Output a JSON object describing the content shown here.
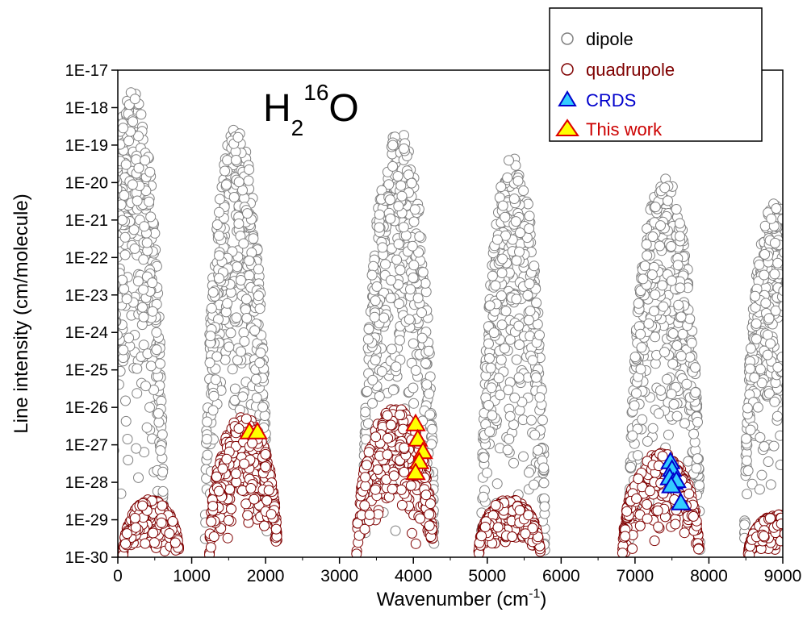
{
  "chart_data": {
    "type": "scatter",
    "title": "",
    "annotation": {
      "base": "H",
      "subscript": "2",
      "superscript": "16",
      "tail": "O"
    },
    "xlabel": {
      "main": "Wavenumber (cm",
      "superscript": "-1",
      "close": ")"
    },
    "ylabel": "Line intensity (cm/molecule)",
    "xlim": [
      0,
      9000
    ],
    "ylim": [
      1e-30,
      1e-17
    ],
    "yscale": "log",
    "grid": false,
    "legend_position": "top-right",
    "x_ticks": [
      "0",
      "1000",
      "2000",
      "3000",
      "4000",
      "5000",
      "6000",
      "7000",
      "8000",
      "9000"
    ],
    "x_tick_values": [
      0,
      1000,
      2000,
      3000,
      4000,
      5000,
      6000,
      7000,
      8000,
      9000
    ],
    "y_ticks": [
      "1E-30",
      "1E-29",
      "1E-28",
      "1E-27",
      "1E-26",
      "1E-25",
      "1E-24",
      "1E-23",
      "1E-22",
      "1E-21",
      "1E-20",
      "1E-19",
      "1E-18",
      "1E-17"
    ],
    "y_tick_exponents": [
      -30,
      -29,
      -28,
      -27,
      -26,
      -25,
      -24,
      -23,
      -22,
      -21,
      -20,
      -19,
      -18,
      -17
    ],
    "series": [
      {
        "name": "dipole",
        "marker": "circle",
        "color": "#808080",
        "fill": "#ffffff",
        "bands": [
          {
            "center": 200,
            "width": 420,
            "peak_log": -17.45,
            "floor_log": -30
          },
          {
            "center": 1600,
            "width": 420,
            "peak_log": -18.55,
            "floor_log": -30
          },
          {
            "center": 3800,
            "width": 480,
            "peak_log": -18.6,
            "floor_log": -30
          },
          {
            "center": 5350,
            "width": 430,
            "peak_log": -19.3,
            "floor_log": -30
          },
          {
            "center": 7400,
            "width": 480,
            "peak_log": -19.85,
            "floor_log": -30
          },
          {
            "center": 8900,
            "width": 420,
            "peak_log": -20.5,
            "floor_log": -30
          }
        ]
      },
      {
        "name": "quadrupole",
        "marker": "circle",
        "color": "#7f0000",
        "fill": "#ffffff",
        "bands": [
          {
            "center": 450,
            "width": 380,
            "peak_log": -28.45,
            "floor_log": -30
          },
          {
            "center": 1700,
            "width": 460,
            "peak_log": -26.25,
            "floor_log": -30
          },
          {
            "center": 3750,
            "width": 520,
            "peak_log": -26.0,
            "floor_log": -30
          },
          {
            "center": 5300,
            "width": 420,
            "peak_log": -28.45,
            "floor_log": -30
          },
          {
            "center": 7350,
            "width": 520,
            "peak_log": -27.2,
            "floor_log": -30
          },
          {
            "center": 8950,
            "width": 420,
            "peak_log": -28.85,
            "floor_log": -30
          }
        ]
      },
      {
        "name": "CRDS",
        "marker": "triangle",
        "color": "#0000cc",
        "fill": "#33ccff",
        "points": [
          {
            "x": 7480,
            "y": 3.5e-28
          },
          {
            "x": 7500,
            "y": 2.2e-28
          },
          {
            "x": 7470,
            "y": 1.3e-28
          },
          {
            "x": 7520,
            "y": 1e-28
          },
          {
            "x": 7560,
            "y": 1.1e-28
          },
          {
            "x": 7490,
            "y": 8e-29
          },
          {
            "x": 7620,
            "y": 2.8e-29
          }
        ]
      },
      {
        "name": "This work",
        "marker": "triangle",
        "color": "#dd0000",
        "fill": "#ffff00",
        "points": [
          {
            "x": 1780,
            "y": 2.2e-27
          },
          {
            "x": 1890,
            "y": 2.2e-27
          },
          {
            "x": 4030,
            "y": 3.6e-27
          },
          {
            "x": 4060,
            "y": 1.4e-27
          },
          {
            "x": 4130,
            "y": 6.5e-28
          },
          {
            "x": 4080,
            "y": 3.5e-28
          },
          {
            "x": 4030,
            "y": 1.8e-28
          }
        ]
      }
    ]
  }
}
